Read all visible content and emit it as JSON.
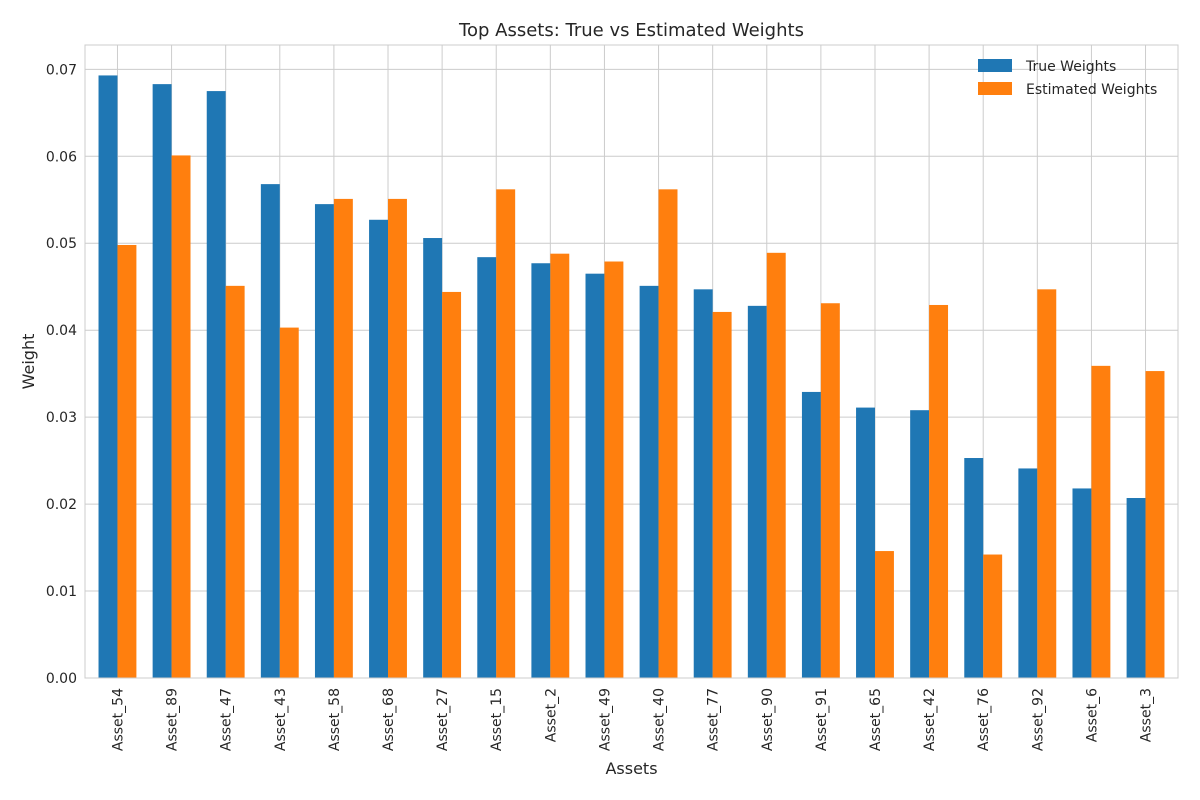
{
  "chart_data": {
    "type": "bar",
    "title": "Top Assets: True vs Estimated Weights",
    "xlabel": "Assets",
    "ylabel": "Weight",
    "ylim": [
      0,
      0.0728
    ],
    "yticks": [
      "0.00",
      "0.01",
      "0.02",
      "0.03",
      "0.04",
      "0.05",
      "0.06",
      "0.07"
    ],
    "grid": true,
    "legend_position": "top-right",
    "categories": [
      "Asset_54",
      "Asset_89",
      "Asset_47",
      "Asset_43",
      "Asset_58",
      "Asset_68",
      "Asset_27",
      "Asset_15",
      "Asset_2",
      "Asset_49",
      "Asset_40",
      "Asset_77",
      "Asset_90",
      "Asset_91",
      "Asset_65",
      "Asset_42",
      "Asset_76",
      "Asset_92",
      "Asset_6",
      "Asset_3"
    ],
    "series": [
      {
        "name": "True Weights",
        "color": "#1f77b4",
        "values": [
          0.0693,
          0.0683,
          0.0675,
          0.0568,
          0.0545,
          0.0527,
          0.0506,
          0.0484,
          0.0477,
          0.0465,
          0.0451,
          0.0447,
          0.0428,
          0.0329,
          0.0311,
          0.0308,
          0.0253,
          0.0241,
          0.0218,
          0.0207
        ]
      },
      {
        "name": "Estimated Weights",
        "color": "#ff7f0e",
        "values": [
          0.0498,
          0.0601,
          0.0451,
          0.0403,
          0.0551,
          0.0551,
          0.0444,
          0.0562,
          0.0488,
          0.0479,
          0.0562,
          0.0421,
          0.0489,
          0.0431,
          0.0146,
          0.0429,
          0.0142,
          0.0447,
          0.0359,
          0.0353
        ]
      }
    ]
  }
}
